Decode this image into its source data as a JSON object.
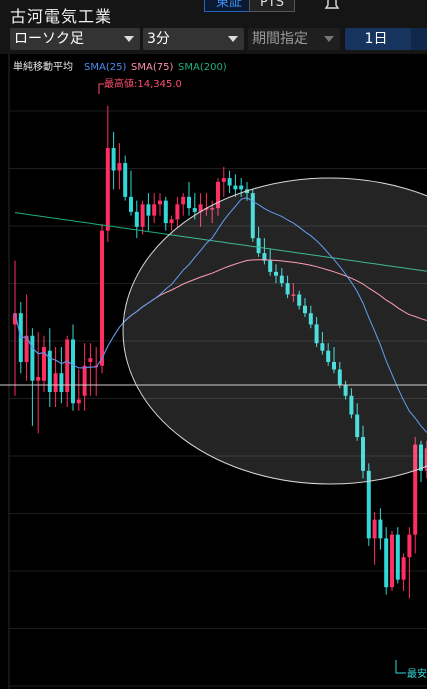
{
  "header": {
    "stock_name": "古河電気工業",
    "market_tabs": [
      "東証",
      "PTS"
    ],
    "chart_type": "ローソク足",
    "interval": "3分",
    "period": "期間指定",
    "range": "1日"
  },
  "colors": {
    "up": "#ff2e63",
    "down": "#32d8d8",
    "sma25": "#4a8ff0",
    "sma75": "#ff8fa8",
    "sma200": "#1fae7e",
    "background": "#000000",
    "grid": "#1e1e1e"
  },
  "chart_data": {
    "type": "candlestick",
    "title": "",
    "legend": {
      "title": "単純移動平均",
      "items": [
        "SMA(25)",
        "SMA(75)",
        "SMA(200)"
      ]
    },
    "annotations": {
      "high_label": "最高値:14,345.0",
      "low_label": "最安"
    },
    "candles": [
      [
        13762,
        13932,
        13572,
        13792
      ],
      [
        13792,
        13822,
        13632,
        13662
      ],
      [
        13662,
        13842,
        13612,
        13732
      ],
      [
        13732,
        13752,
        13492,
        13612
      ],
      [
        13612,
        13742,
        13472,
        13622
      ],
      [
        13612,
        13732,
        13582,
        13702
      ],
      [
        13692,
        13752,
        13542,
        13582
      ],
      [
        13582,
        13702,
        13542,
        13632
      ],
      [
        13632,
        13702,
        13552,
        13582
      ],
      [
        13582,
        13732,
        13542,
        13722
      ],
      [
        13722,
        13762,
        13532,
        13552
      ],
      [
        13552,
        13642,
        13532,
        13562
      ],
      [
        13572,
        13712,
        13532,
        13652
      ],
      [
        13662,
        13712,
        13572,
        13672
      ],
      [
        13652,
        13702,
        13572,
        13652
      ],
      [
        13652,
        14030,
        13632,
        14012
      ],
      [
        14012,
        14345,
        13982,
        14232
      ],
      [
        14232,
        14275,
        14122,
        14172
      ],
      [
        14172,
        14245,
        14122,
        14192
      ],
      [
        14192,
        14212,
        14092,
        14102
      ],
      [
        14102,
        14172,
        14052,
        14062
      ],
      [
        14062,
        14092,
        13992,
        14022
      ],
      [
        14022,
        14092,
        14002,
        14082
      ],
      [
        14082,
        14112,
        14012,
        14052
      ],
      [
        14052,
        14112,
        14032,
        14082
      ],
      [
        14082,
        14112,
        14052,
        14092
      ],
      [
        14092,
        14102,
        14012,
        14032
      ],
      [
        14032,
        14052,
        14012,
        14042
      ],
      [
        14042,
        14102,
        14022,
        14082
      ],
      [
        14082,
        14112,
        14052,
        14102
      ],
      [
        14102,
        14142,
        14052,
        14072
      ],
      [
        14072,
        14112,
        14042,
        14062
      ],
      [
        14062,
        14112,
        14022,
        14082
      ],
      [
        14072,
        14112,
        14052,
        14072
      ],
      [
        14072,
        14092,
        14032,
        14072
      ],
      [
        14072,
        14152,
        14052,
        14142
      ],
      [
        14142,
        14182,
        14102,
        14152
      ],
      [
        14152,
        14172,
        14112,
        14132
      ],
      [
        14132,
        14162,
        14102,
        14122
      ],
      [
        14132,
        14152,
        14102,
        14122
      ],
      [
        14122,
        14142,
        14092,
        14112
      ],
      [
        14112,
        14122,
        13982,
        13992
      ],
      [
        13992,
        14022,
        13942,
        13952
      ],
      [
        13952,
        13992,
        13922,
        13932
      ],
      [
        13932,
        13962,
        13892,
        13902
      ],
      [
        13902,
        13922,
        13872,
        13892
      ],
      [
        13892,
        13912,
        13862,
        13872
      ],
      [
        13872,
        13892,
        13832,
        13842
      ],
      [
        13842,
        13872,
        13822,
        13842
      ],
      [
        13842,
        13852,
        13802,
        13812
      ],
      [
        13812,
        13832,
        13782,
        13792
      ],
      [
        13792,
        13812,
        13752,
        13762
      ],
      [
        13762,
        13782,
        13702,
        13712
      ],
      [
        13712,
        13742,
        13682,
        13692
      ],
      [
        13692,
        13712,
        13652,
        13662
      ],
      [
        13662,
        13702,
        13632,
        13642
      ],
      [
        13642,
        13662,
        13592,
        13602
      ],
      [
        13602,
        13612,
        13562,
        13572
      ],
      [
        13572,
        13592,
        13512,
        13522
      ],
      [
        13522,
        13552,
        13452,
        13462
      ],
      [
        13462,
        13492,
        13352,
        13372
      ],
      [
        13372,
        13392,
        13172,
        13192
      ],
      [
        13192,
        13262,
        13122,
        13242
      ],
      [
        13242,
        13272,
        13162,
        13192
      ],
      [
        13192,
        13222,
        13042,
        13062
      ],
      [
        13062,
        13212,
        13052,
        13202
      ],
      [
        13202,
        13222,
        13072,
        13082
      ],
      [
        13082,
        13152,
        13052,
        13142
      ],
      [
        13142,
        13222,
        13032,
        13202
      ],
      [
        13202,
        13462,
        13152,
        13442
      ],
      [
        13442,
        13452,
        13342,
        13372
      ],
      [
        13372,
        13452,
        13352,
        13432
      ]
    ]
  }
}
